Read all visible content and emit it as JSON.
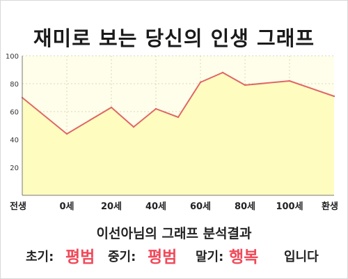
{
  "title": "재미로 보는 당신의 인생 그래프",
  "chart_data": {
    "type": "area",
    "title": "재미로 보는 당신의 인생 그래프",
    "x_tick_labels": [
      "전생",
      "0세",
      "20세",
      "40세",
      "60세",
      "80세",
      "100세",
      "환생"
    ],
    "y_ticks": [
      20,
      40,
      60,
      80,
      100
    ],
    "ylim": [
      0,
      100
    ],
    "grid": "dotted",
    "legend": "none",
    "series": [
      {
        "x": [
          0,
          1,
          2,
          2.5,
          3,
          3.5,
          4,
          4.5,
          5,
          6,
          7
        ],
        "values": [
          70,
          44,
          63,
          49,
          62,
          56,
          81,
          88,
          79,
          82,
          71
        ]
      }
    ],
    "colors": {
      "line": "#e06666",
      "fill": "#fffcc0",
      "plot_bg": "#fffeea",
      "grid": "#d9d6b8"
    }
  },
  "result": {
    "heading": "이선아님의 그래프 분석결과",
    "early_label": "초기:",
    "early_value": "평범",
    "mid_label": "중기:",
    "mid_value": "평범",
    "late_label": "말기:",
    "late_value": "행복",
    "ending": "입니다"
  }
}
